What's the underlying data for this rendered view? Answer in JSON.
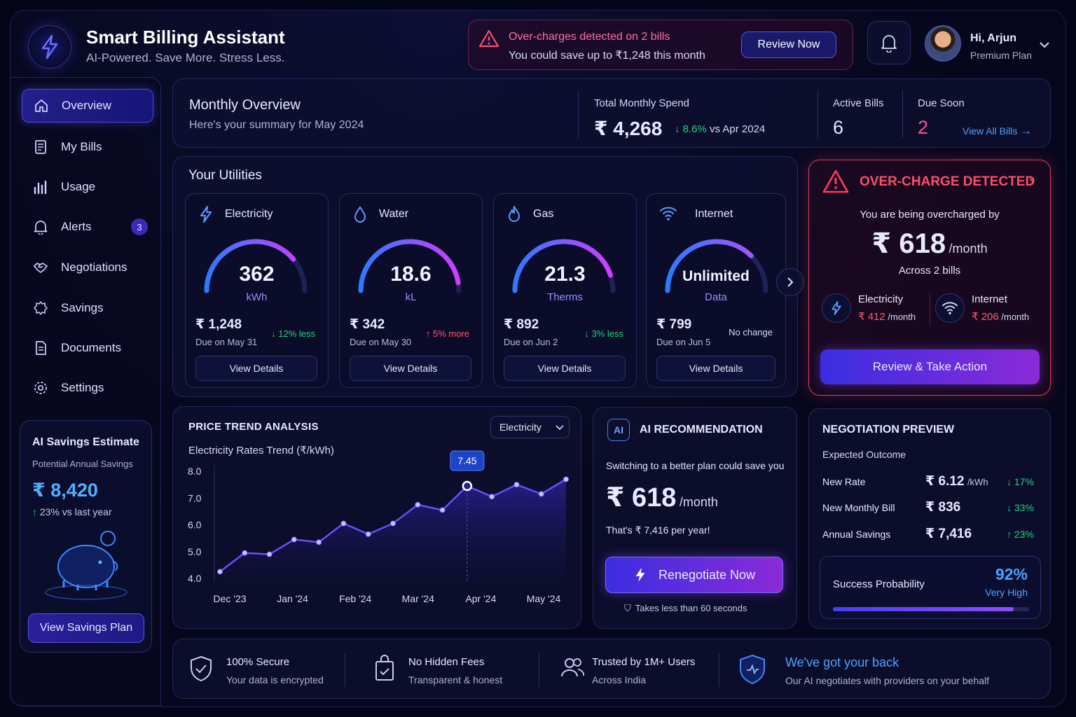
{
  "app": {
    "title": "Smart Billing Assistant",
    "tagline": "AI-Powered. Save More. Stress Less."
  },
  "alert": {
    "title": "Over-charges detected on 2 bills",
    "text": "You could save up to ₹1,248 this month",
    "button": "Review Now"
  },
  "user": {
    "greeting": "Hi, Arjun",
    "plan": "Premium Plan"
  },
  "sidebar": {
    "items": [
      {
        "label": "Overview",
        "icon": "home-icon",
        "active": true
      },
      {
        "label": "My Bills",
        "icon": "bills-icon"
      },
      {
        "label": "Usage",
        "icon": "bar-chart-icon"
      },
      {
        "label": "Alerts",
        "icon": "bell-icon",
        "badge": "3"
      },
      {
        "label": "Negotiations",
        "icon": "handshake-icon"
      },
      {
        "label": "Savings",
        "icon": "savings-icon"
      },
      {
        "label": "Documents",
        "icon": "document-icon"
      },
      {
        "label": "Settings",
        "icon": "gear-icon"
      }
    ],
    "savings": {
      "title": "AI Savings Estimate",
      "subtitle": "Potential Annual Savings",
      "amount": "₹ 8,420",
      "change": "23% vs last year",
      "button": "View Savings Plan"
    }
  },
  "overview": {
    "title": "Monthly Overview",
    "subtitle": "Here's your summary for May 2024",
    "spend_label": "Total Monthly Spend",
    "spend": "₹ 4,268",
    "spend_change": "8.6%",
    "spend_vs": "vs Apr 2024",
    "active_label": "Active Bills",
    "active": "6",
    "due_label": "Due Soon",
    "due": "2",
    "view_all": "View All Bills"
  },
  "utilities": {
    "title": "Your Utilities",
    "cards": [
      {
        "name": "Electricity",
        "value": "362",
        "unit": "kWh",
        "amount": "₹ 1,248",
        "due": "Due on May 31",
        "change": "12% less",
        "dir": "down",
        "button": "View Details",
        "fill": 0.78
      },
      {
        "name": "Water",
        "value": "18.6",
        "unit": "kL",
        "amount": "₹ 342",
        "due": "Due on May 30",
        "change": "5% more",
        "dir": "up",
        "button": "View Details",
        "fill": 0.95
      },
      {
        "name": "Gas",
        "value": "21.3",
        "unit": "Therms",
        "amount": "₹ 892",
        "due": "Due on Jun 2",
        "change": "3% less",
        "dir": "down",
        "button": "View Details",
        "fill": 0.9
      },
      {
        "name": "Internet",
        "value": "Unlimited",
        "unit": "Data",
        "amount": "₹ 799",
        "due": "Due on Jun 5",
        "change": "No change",
        "dir": "none",
        "button": "View Details",
        "fill": 0.75
      }
    ]
  },
  "overcharge": {
    "title": "OVER-CHARGE DETECTED",
    "intro": "You are being overcharged by",
    "amount": "₹ 618",
    "per": "/month",
    "across": "Across 2 bills",
    "items": [
      {
        "name": "Electricity",
        "amount": "₹ 412",
        "per": "/month"
      },
      {
        "name": "Internet",
        "amount": "₹ 206",
        "per": "/month"
      }
    ],
    "button": "Review & Take Action"
  },
  "trend": {
    "title": "PRICE TREND ANALYSIS",
    "subtitle": "Electricity Rates Trend (₹/kWh)",
    "dropdown": "Electricity",
    "tooltip": "7.45"
  },
  "chart_data": {
    "type": "line",
    "title": "Electricity Rates Trend (₹/kWh)",
    "ylim": [
      4.0,
      8.0
    ],
    "yticks": [
      "8.0",
      "7.0",
      "6.0",
      "5.0",
      "4.0"
    ],
    "xticks": [
      "Dec '23",
      "Jan '24",
      "Feb '24",
      "Mar '24",
      "Apr '24",
      "May '24"
    ],
    "series": [
      {
        "values": [
          4.25,
          4.95,
          4.9,
          5.45,
          5.35,
          6.05,
          5.65,
          6.05,
          6.75,
          6.55,
          7.45,
          7.05,
          7.5,
          7.15,
          7.7
        ]
      }
    ],
    "highlight_index": 10,
    "color": "#6a4dff",
    "grid": false
  },
  "ai": {
    "title": "AI RECOMMENDATION",
    "text": "Switching to a better plan could save you",
    "amount": "₹ 618",
    "per": "/month",
    "year": "That's ₹ 7,416 per year!",
    "button": "Renegotiate Now",
    "note": "Takes less than 60 seconds"
  },
  "negotiation": {
    "title": "NEGOTIATION PREVIEW",
    "subtitle": "Expected Outcome",
    "rows": [
      {
        "label": "New Rate",
        "value": "₹ 6.12",
        "unit": "/kWh",
        "change": "17%",
        "dir": "down"
      },
      {
        "label": "New Monthly Bill",
        "value": "₹ 836",
        "unit": "",
        "change": "33%",
        "dir": "down"
      },
      {
        "label": "Annual Savings",
        "value": "₹ 7,416",
        "unit": "",
        "change": "23%",
        "dir": "up"
      }
    ],
    "prob_label": "Success Probability",
    "prob": "92%",
    "prob_text": "Very High",
    "prob_fill": 0.92
  },
  "footer": [
    {
      "title": "100% Secure",
      "text": "Your data is encrypted",
      "icon": "shield-check-icon"
    },
    {
      "title": "No Hidden Fees",
      "text": "Transparent & honest",
      "icon": "receipt-icon"
    },
    {
      "title": "Trusted by 1M+ Users",
      "text": "Across India",
      "icon": "users-icon"
    },
    {
      "title": "We've got your back",
      "text": "Our AI negotiates with providers on your behalf",
      "icon": "shield-heart-icon"
    }
  ]
}
